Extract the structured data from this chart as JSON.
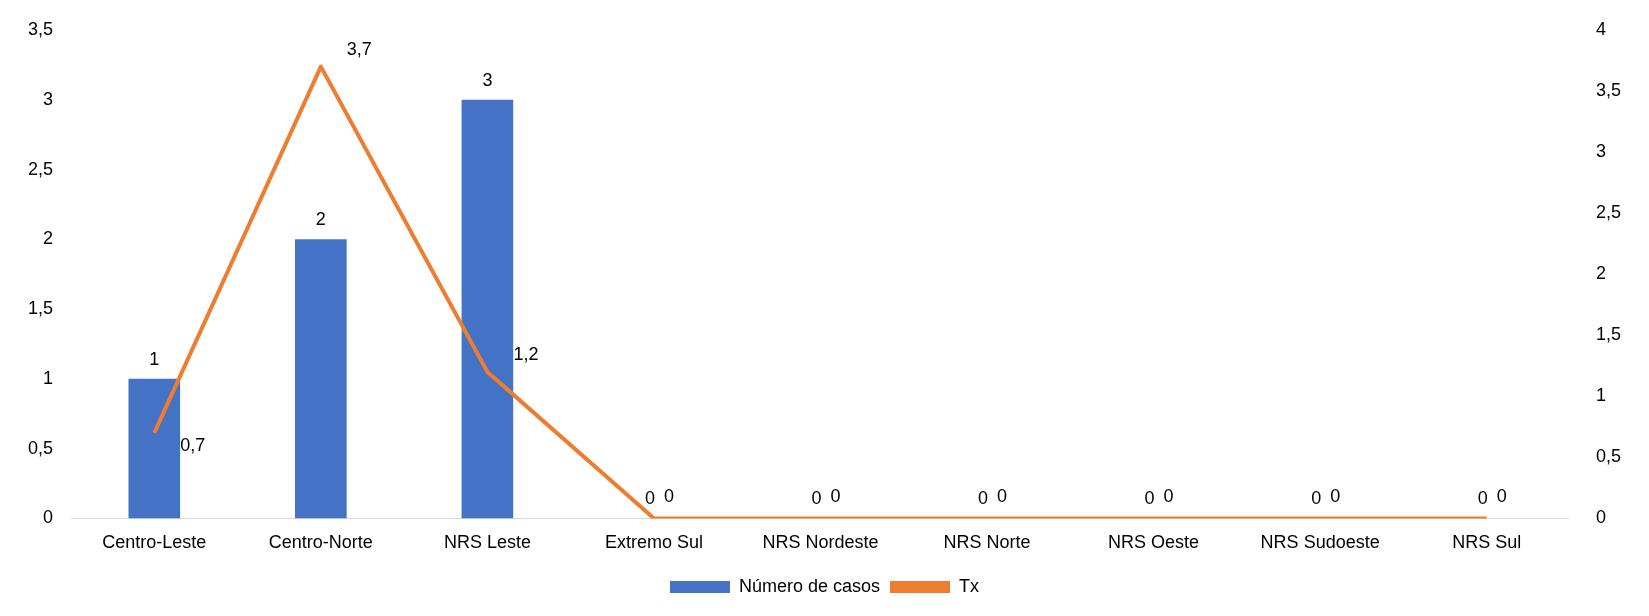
{
  "chart_data": {
    "type": "bar",
    "categories": [
      "Centro-Leste",
      "Centro-Norte",
      "NRS Leste",
      "Extremo Sul",
      "NRS Nordeste",
      "NRS Norte",
      "NRS Oeste",
      "NRS Sudoeste",
      "NRS Sul"
    ],
    "series": [
      {
        "name": "Número de casos",
        "color": "#4472c4",
        "values": [
          1,
          2,
          3,
          0,
          0,
          0,
          0,
          0,
          0
        ],
        "value_labels": [
          "1",
          "2",
          "3",
          "0",
          "0",
          "0",
          "0",
          "0",
          "0"
        ]
      },
      {
        "name": "Tx",
        "type": "line",
        "axis": "y2",
        "color": "#ed7d31",
        "values": [
          0.7,
          3.7,
          1.2,
          0,
          0,
          0,
          0,
          0,
          0
        ],
        "value_labels": [
          "0,7",
          "3,7",
          "1,2",
          "0",
          "0",
          "0",
          "0",
          "0",
          "0"
        ]
      }
    ],
    "ylim": [
      0,
      3.5
    ],
    "yticks": [
      0,
      {
        "value": 0.5,
        "label": "0,5"
      },
      1,
      {
        "value": 1.5,
        "label": "1,5"
      },
      2,
      {
        "value": 2.5,
        "label": "2,5"
      },
      3,
      {
        "value": 3.5,
        "label": "3,5"
      }
    ],
    "y2lim": [
      0,
      4
    ],
    "y2ticks": [
      0,
      {
        "value": 0.5,
        "label": "0,5"
      },
      1,
      {
        "value": 1.5,
        "label": "1,5"
      },
      2,
      {
        "value": 2.5,
        "label": "2,5"
      },
      3,
      {
        "value": 3.5,
        "label": "3,5"
      },
      4
    ],
    "grid": false,
    "legend": "bottom",
    "marker": "none"
  }
}
